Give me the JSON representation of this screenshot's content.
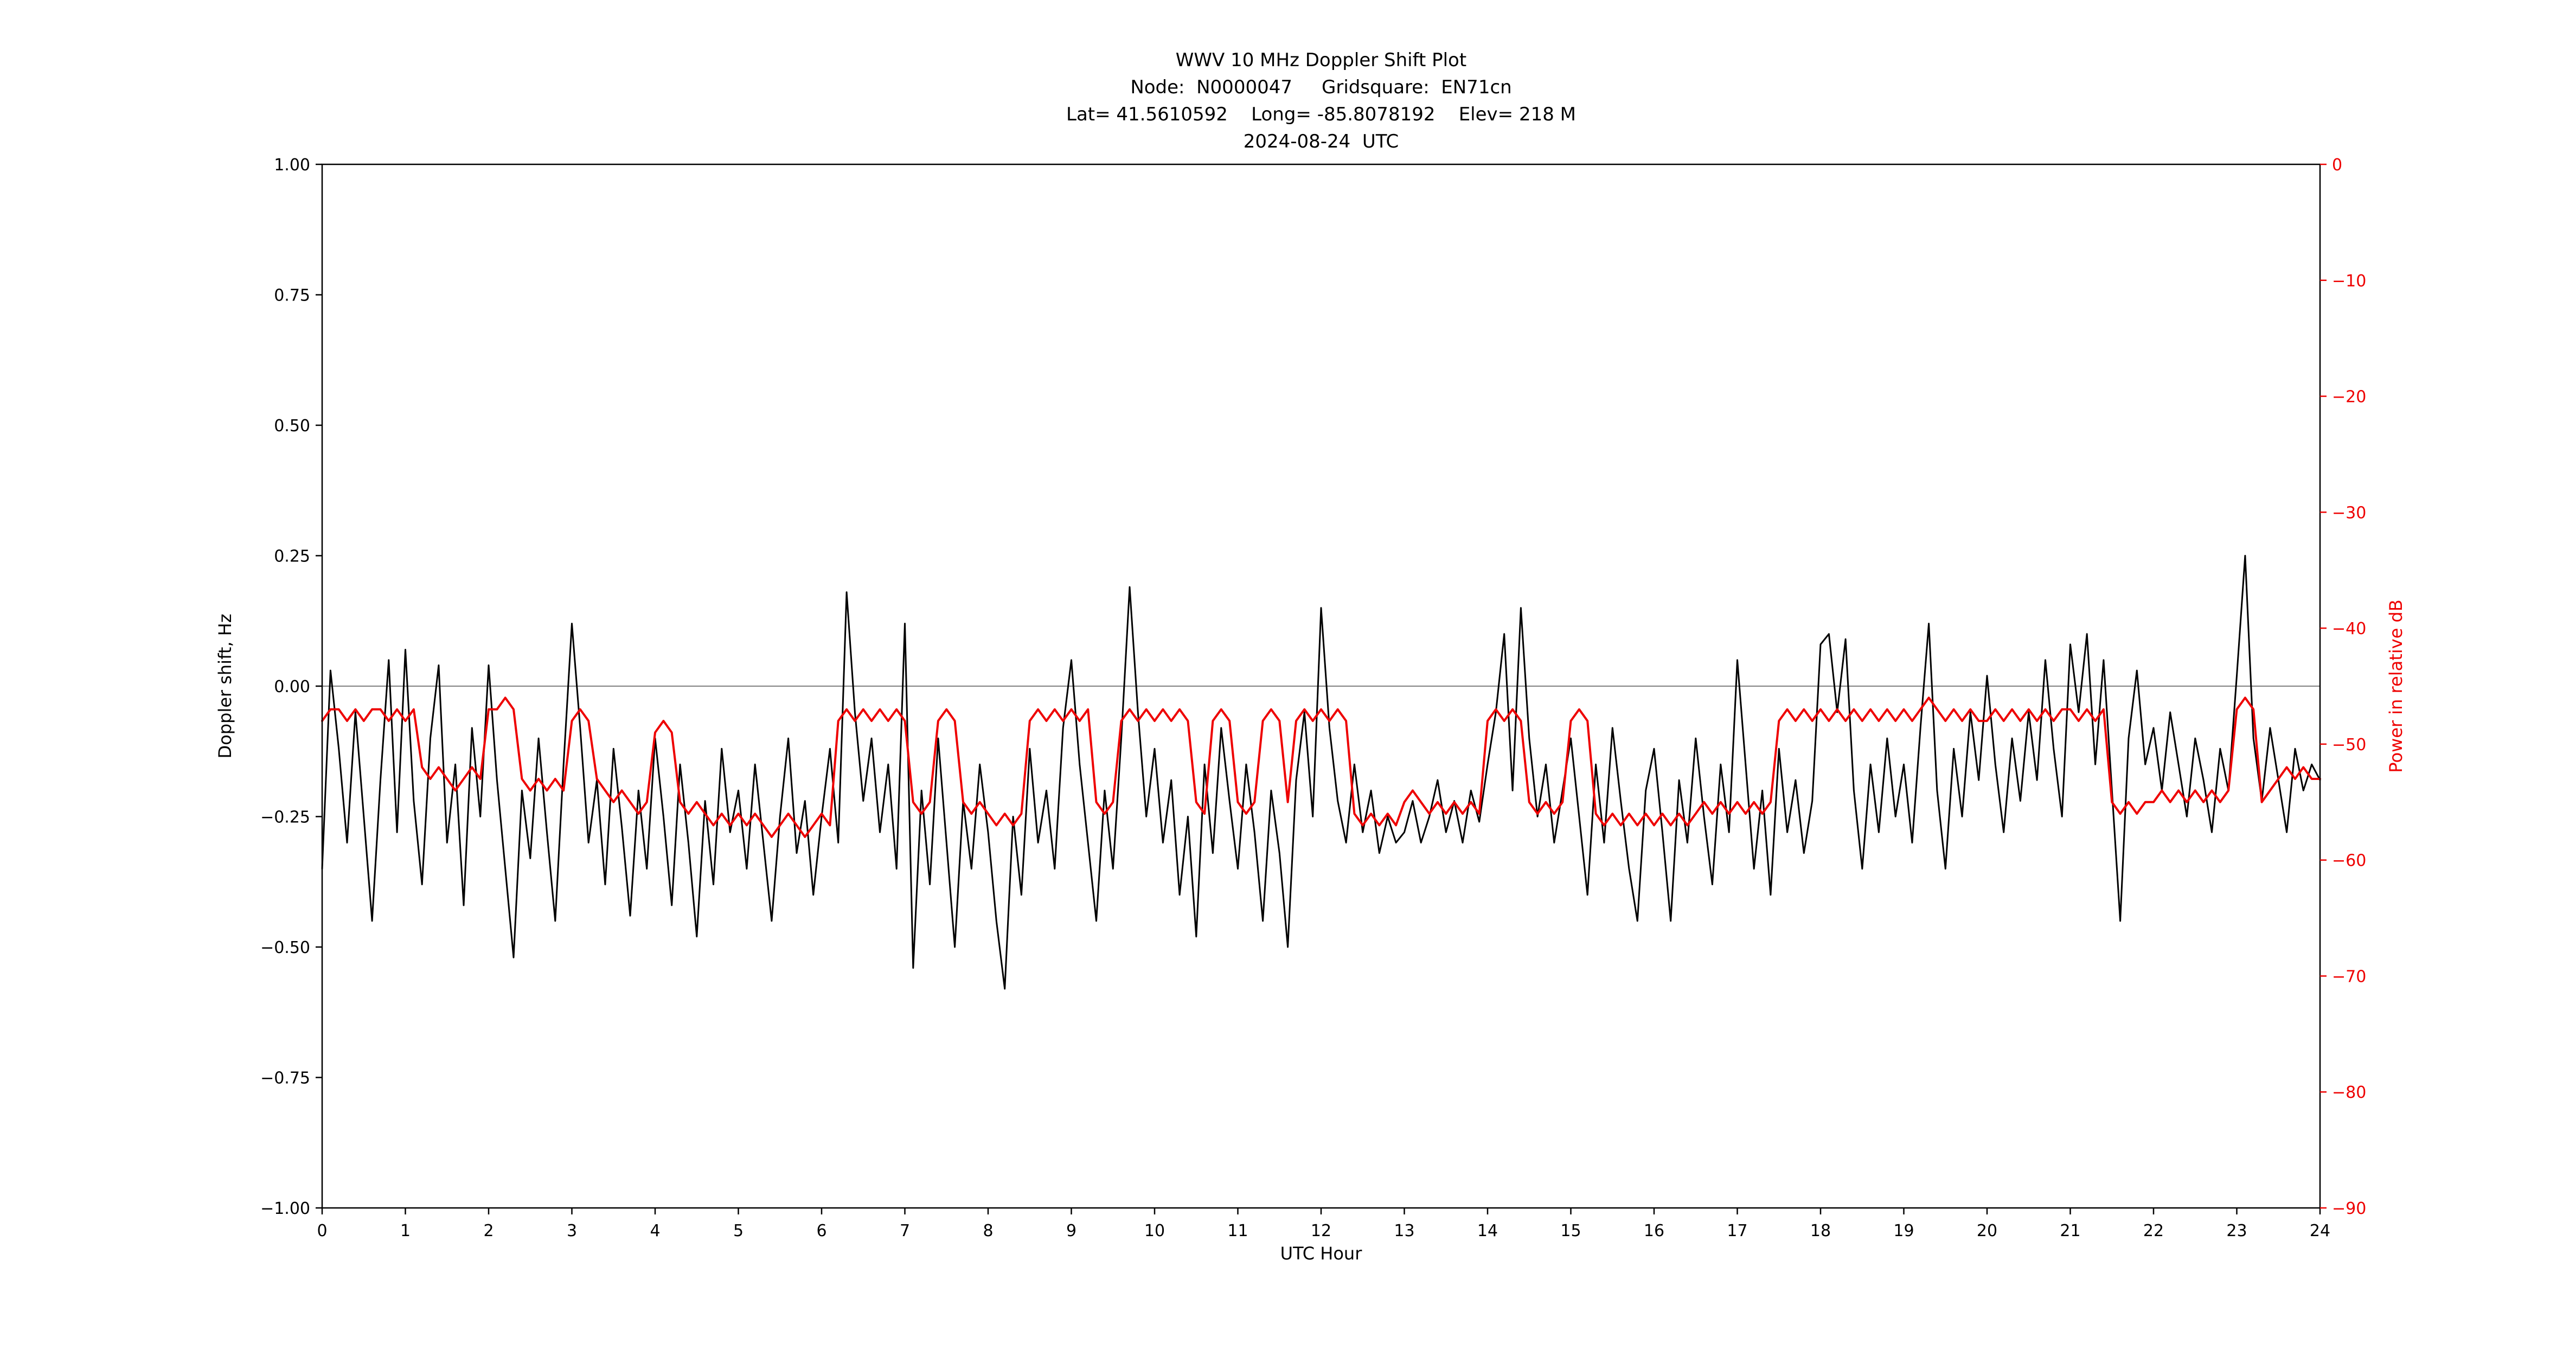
{
  "figure": {
    "title_line1": "WWV 10 MHz Doppler Shift Plot",
    "title_line2": "Node:  N0000047     Gridsquare:  EN71cn",
    "title_line3": "Lat= 41.5610592    Long= -85.8078192    Elev= 218 M",
    "title_line4": "2024-08-24  UTC"
  },
  "chart_data": {
    "type": "line",
    "title": "WWV 10 MHz Doppler Shift Plot",
    "subtitle_lines": [
      "Node:  N0000047     Gridsquare:  EN71cn",
      "Lat= 41.5610592    Long= -85.8078192    Elev= 218 M",
      "2024-08-24  UTC"
    ],
    "xlabel": "UTC Hour",
    "ylabel_left": "Doppler shift, Hz",
    "ylabel_right": "Power in relative dB",
    "xlim": [
      0,
      24
    ],
    "ylim_left": [
      -1.0,
      1.0
    ],
    "ylim_right": [
      -90,
      0
    ],
    "grid": false,
    "legend": "none",
    "zero_line_left": 0.0,
    "colors": {
      "doppler": "#000000",
      "power": "#ee0000",
      "zero_line": "#808080",
      "axis": "#000000"
    },
    "x_ticks": [
      0,
      1,
      2,
      3,
      4,
      5,
      6,
      7,
      8,
      9,
      10,
      11,
      12,
      13,
      14,
      15,
      16,
      17,
      18,
      19,
      20,
      21,
      22,
      23,
      24
    ],
    "x_tick_labels": [
      "0",
      "1",
      "2",
      "3",
      "4",
      "5",
      "6",
      "7",
      "8",
      "9",
      "10",
      "11",
      "12",
      "13",
      "14",
      "15",
      "16",
      "17",
      "18",
      "19",
      "20",
      "21",
      "22",
      "23",
      "24"
    ],
    "y_ticks_left_values": [
      1.0,
      0.75,
      0.5,
      0.25,
      0.0,
      -0.25,
      -0.5,
      -0.75,
      -1.0
    ],
    "y_ticks_left_labels": [
      "1.00",
      "0.75",
      "0.50",
      "0.25",
      "0.00",
      "−0.25",
      "−0.50",
      "−0.75",
      "−1.00"
    ],
    "y_ticks_right_values": [
      0,
      -10,
      -20,
      -30,
      -40,
      -50,
      -60,
      -70,
      -80,
      -90
    ],
    "y_ticks_right_labels": [
      "0",
      "−10",
      "−20",
      "−30",
      "−40",
      "−50",
      "−60",
      "−70",
      "−80",
      "−90"
    ],
    "x_step_hours": 0.1,
    "series": [
      {
        "name": "Doppler shift (Hz)",
        "axis": "left",
        "color": "#000000",
        "values": [
          -0.35,
          0.03,
          -0.12,
          -0.3,
          -0.05,
          -0.25,
          -0.45,
          -0.18,
          0.05,
          -0.28,
          0.07,
          -0.22,
          -0.38,
          -0.1,
          0.04,
          -0.3,
          -0.15,
          -0.42,
          -0.08,
          -0.25,
          0.04,
          -0.18,
          -0.35,
          -0.52,
          -0.2,
          -0.33,
          -0.1,
          -0.28,
          -0.45,
          -0.15,
          0.12,
          -0.08,
          -0.3,
          -0.18,
          -0.38,
          -0.12,
          -0.27,
          -0.44,
          -0.2,
          -0.35,
          -0.1,
          -0.25,
          -0.42,
          -0.15,
          -0.3,
          -0.48,
          -0.22,
          -0.38,
          -0.12,
          -0.28,
          -0.2,
          -0.35,
          -0.15,
          -0.3,
          -0.45,
          -0.25,
          -0.1,
          -0.32,
          -0.22,
          -0.4,
          -0.25,
          -0.12,
          -0.3,
          0.18,
          -0.05,
          -0.22,
          -0.1,
          -0.28,
          -0.15,
          -0.35,
          0.12,
          -0.54,
          -0.2,
          -0.38,
          -0.1,
          -0.3,
          -0.5,
          -0.22,
          -0.35,
          -0.15,
          -0.28,
          -0.45,
          -0.58,
          -0.25,
          -0.4,
          -0.12,
          -0.3,
          -0.2,
          -0.35,
          -0.08,
          0.05,
          -0.15,
          -0.3,
          -0.45,
          -0.2,
          -0.35,
          -0.1,
          0.19,
          -0.05,
          -0.25,
          -0.12,
          -0.3,
          -0.18,
          -0.4,
          -0.25,
          -0.48,
          -0.15,
          -0.32,
          -0.08,
          -0.22,
          -0.35,
          -0.15,
          -0.28,
          -0.45,
          -0.2,
          -0.32,
          -0.5,
          -0.18,
          -0.05,
          -0.25,
          0.15,
          -0.08,
          -0.22,
          -0.3,
          -0.15,
          -0.28,
          -0.2,
          -0.32,
          -0.25,
          -0.3,
          -0.28,
          -0.22,
          -0.3,
          -0.25,
          -0.18,
          -0.28,
          -0.22,
          -0.3,
          -0.2,
          -0.26,
          -0.15,
          -0.05,
          0.1,
          -0.2,
          0.15,
          -0.1,
          -0.25,
          -0.15,
          -0.3,
          -0.2,
          -0.1,
          -0.25,
          -0.4,
          -0.15,
          -0.3,
          -0.08,
          -0.22,
          -0.35,
          -0.45,
          -0.2,
          -0.12,
          -0.28,
          -0.45,
          -0.18,
          -0.3,
          -0.1,
          -0.25,
          -0.38,
          -0.15,
          -0.28,
          0.05,
          -0.15,
          -0.35,
          -0.2,
          -0.4,
          -0.12,
          -0.28,
          -0.18,
          -0.32,
          -0.22,
          0.08,
          0.1,
          -0.05,
          0.09,
          -0.2,
          -0.35,
          -0.15,
          -0.28,
          -0.1,
          -0.25,
          -0.15,
          -0.3,
          -0.08,
          0.12,
          -0.2,
          -0.35,
          -0.12,
          -0.25,
          -0.05,
          -0.18,
          0.02,
          -0.15,
          -0.28,
          -0.1,
          -0.22,
          -0.05,
          -0.18,
          0.05,
          -0.12,
          -0.25,
          0.08,
          -0.05,
          0.1,
          -0.15,
          0.05,
          -0.2,
          -0.45,
          -0.1,
          0.03,
          -0.15,
          -0.08,
          -0.2,
          -0.05,
          -0.15,
          -0.25,
          -0.1,
          -0.18,
          -0.28,
          -0.12,
          -0.2,
          0.02,
          0.25,
          -0.1,
          -0.22,
          -0.08,
          -0.18,
          -0.28,
          -0.12,
          -0.2,
          -0.15,
          -0.18
        ]
      },
      {
        "name": "Power (relative dB)",
        "axis": "right",
        "color": "#ee0000",
        "values": [
          -48,
          -47,
          -47,
          -48,
          -47,
          -48,
          -47,
          -47,
          -48,
          -47,
          -48,
          -47,
          -52,
          -53,
          -52,
          -53,
          -54,
          -53,
          -52,
          -53,
          -47,
          -47,
          -46,
          -47,
          -53,
          -54,
          -53,
          -54,
          -53,
          -54,
          -48,
          -47,
          -48,
          -53,
          -54,
          -55,
          -54,
          -55,
          -56,
          -55,
          -49,
          -48,
          -49,
          -55,
          -56,
          -55,
          -56,
          -57,
          -56,
          -57,
          -56,
          -57,
          -56,
          -57,
          -58,
          -57,
          -56,
          -57,
          -58,
          -57,
          -56,
          -57,
          -48,
          -47,
          -48,
          -47,
          -48,
          -47,
          -48,
          -47,
          -48,
          -55,
          -56,
          -55,
          -48,
          -47,
          -48,
          -55,
          -56,
          -55,
          -56,
          -57,
          -56,
          -57,
          -56,
          -48,
          -47,
          -48,
          -47,
          -48,
          -47,
          -48,
          -47,
          -55,
          -56,
          -55,
          -48,
          -47,
          -48,
          -47,
          -48,
          -47,
          -48,
          -47,
          -48,
          -55,
          -56,
          -48,
          -47,
          -48,
          -55,
          -56,
          -55,
          -48,
          -47,
          -48,
          -55,
          -48,
          -47,
          -48,
          -47,
          -48,
          -47,
          -48,
          -56,
          -57,
          -56,
          -57,
          -56,
          -57,
          -55,
          -54,
          -55,
          -56,
          -55,
          -56,
          -55,
          -56,
          -55,
          -56,
          -48,
          -47,
          -48,
          -47,
          -48,
          -55,
          -56,
          -55,
          -56,
          -55,
          -48,
          -47,
          -48,
          -56,
          -57,
          -56,
          -57,
          -56,
          -57,
          -56,
          -57,
          -56,
          -57,
          -56,
          -57,
          -56,
          -55,
          -56,
          -55,
          -56,
          -55,
          -56,
          -55,
          -56,
          -55,
          -48,
          -47,
          -48,
          -47,
          -48,
          -47,
          -48,
          -47,
          -48,
          -47,
          -48,
          -47,
          -48,
          -47,
          -48,
          -47,
          -48,
          -47,
          -46,
          -47,
          -48,
          -47,
          -48,
          -47,
          -48,
          -48,
          -47,
          -48,
          -47,
          -48,
          -47,
          -48,
          -47,
          -48,
          -47,
          -47,
          -48,
          -47,
          -48,
          -47,
          -55,
          -56,
          -55,
          -56,
          -55,
          -55,
          -54,
          -55,
          -54,
          -55,
          -54,
          -55,
          -54,
          -55,
          -54,
          -47,
          -46,
          -47,
          -55,
          -54,
          -53,
          -52,
          -53,
          -52,
          -53,
          -53
        ]
      }
    ]
  }
}
